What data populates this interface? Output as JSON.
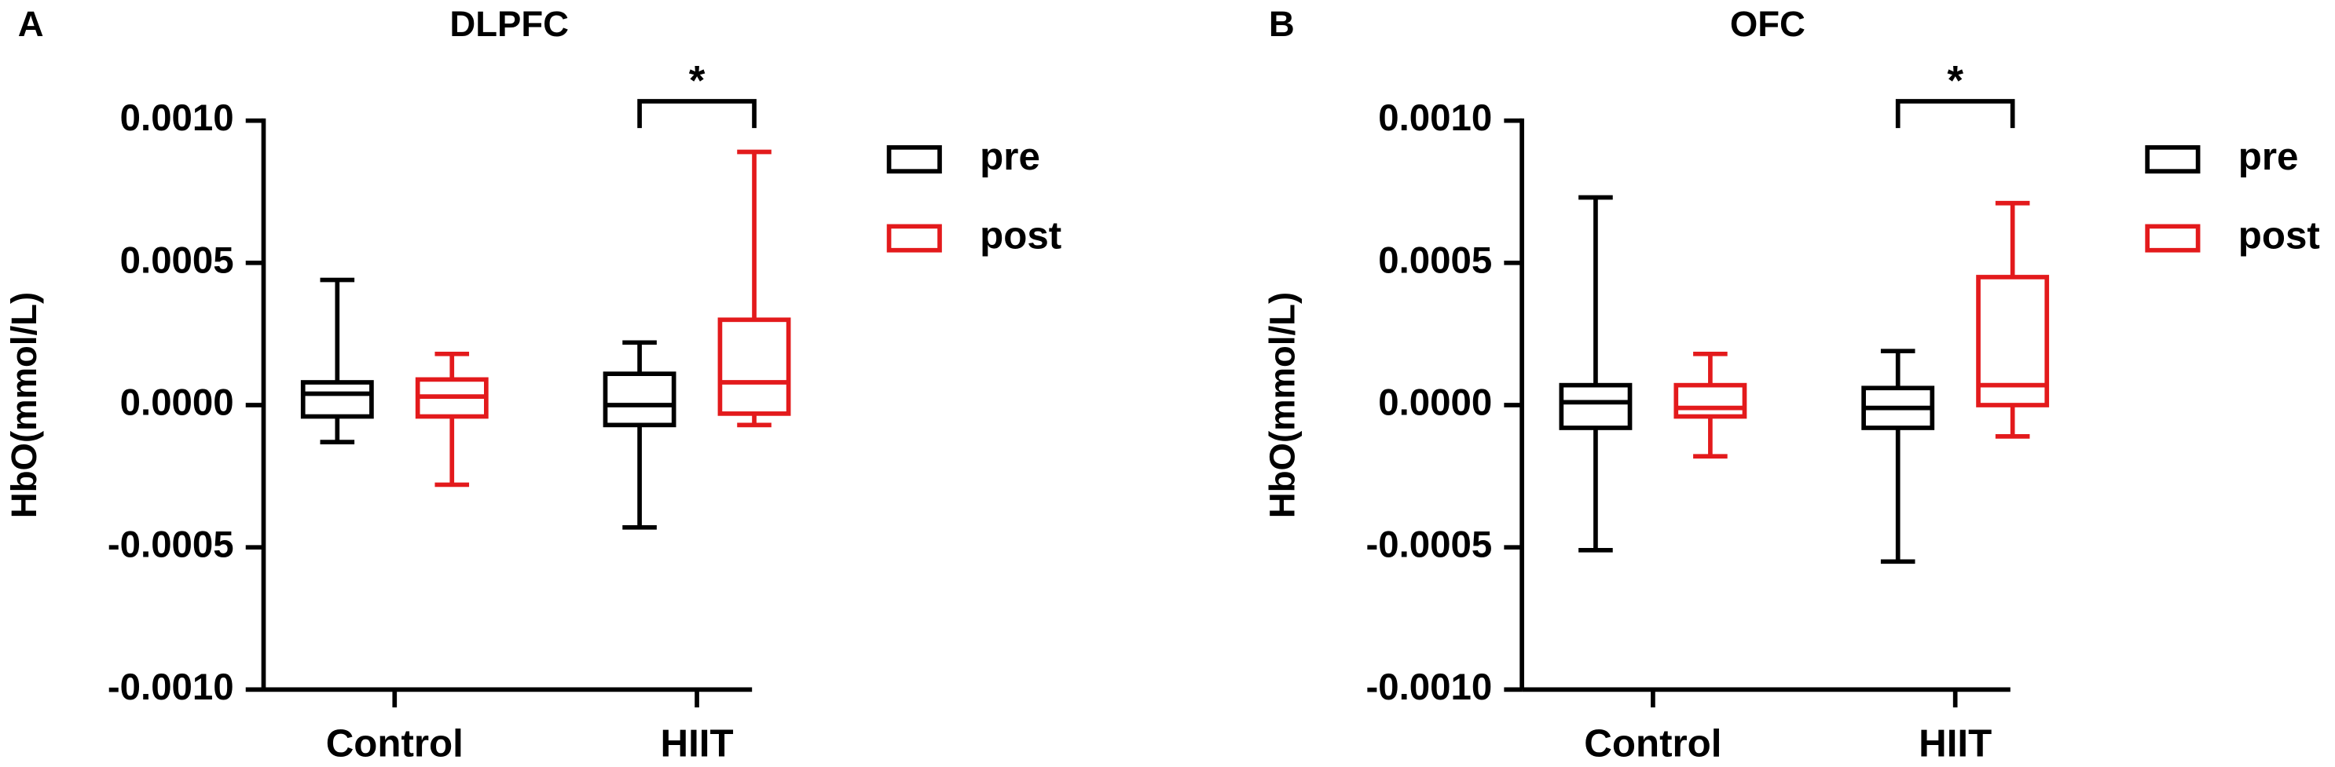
{
  "chart_data": [
    {
      "type": "box",
      "panel": "A",
      "title": "DLPFC",
      "y_label": "HbO(mmol/L)",
      "categories": [
        "Control",
        "HIIT"
      ],
      "ylim": [
        -0.001,
        0.001
      ],
      "yticks": [
        {
          "value": 0.001,
          "label": "0.0010"
        },
        {
          "value": 0.0005,
          "label": "0.0005"
        },
        {
          "value": 0,
          "label": "0.0000"
        },
        {
          "value": -0.0005,
          "label": "-0.0005"
        },
        {
          "value": -0.001,
          "label": "-0.0010"
        }
      ],
      "series": [
        {
          "name": "pre",
          "color": "#000000",
          "values": [
            {
              "min": -0.00013,
              "q1": -4e-05,
              "median": 4e-05,
              "q3": 8e-05,
              "max": 0.00044
            },
            {
              "min": -0.00043,
              "q1": -7e-05,
              "median": 0,
              "q3": 0.00011,
              "max": 0.00022
            }
          ]
        },
        {
          "name": "post",
          "color": "#e31a1c",
          "values": [
            {
              "min": -0.00028,
              "q1": -4e-05,
              "median": 3e-05,
              "q3": 9e-05,
              "max": 0.00018
            },
            {
              "min": -7e-05,
              "q1": -3e-05,
              "median": 8e-05,
              "q3": 0.0003,
              "max": 0.00089
            }
          ]
        }
      ],
      "annotation": "*"
    },
    {
      "type": "box",
      "panel": "B",
      "title": "OFC",
      "y_label": "HbO(mmol/L)",
      "categories": [
        "Control",
        "HIIT"
      ],
      "ylim": [
        -0.001,
        0.001
      ],
      "yticks": [
        {
          "value": 0.001,
          "label": "0.0010"
        },
        {
          "value": 0.0005,
          "label": "0.0005"
        },
        {
          "value": 0,
          "label": "0.0000"
        },
        {
          "value": -0.0005,
          "label": "-0.0005"
        },
        {
          "value": -0.001,
          "label": "-0.0010"
        }
      ],
      "series": [
        {
          "name": "pre",
          "color": "#000000",
          "values": [
            {
              "min": -0.00051,
              "q1": -8e-05,
              "median": 1e-05,
              "q3": 7e-05,
              "max": 0.00073
            },
            {
              "min": -0.00055,
              "q1": -8e-05,
              "median": -1e-05,
              "q3": 6e-05,
              "max": 0.00019
            }
          ]
        },
        {
          "name": "post",
          "color": "#e31a1c",
          "values": [
            {
              "min": -0.00018,
              "q1": -4e-05,
              "median": -1e-05,
              "q3": 7e-05,
              "max": 0.00018
            },
            {
              "min": -0.00011,
              "q1": 0,
              "median": 7e-05,
              "q3": 0.00045,
              "max": 0.00071
            }
          ]
        }
      ],
      "annotation": "*"
    }
  ]
}
